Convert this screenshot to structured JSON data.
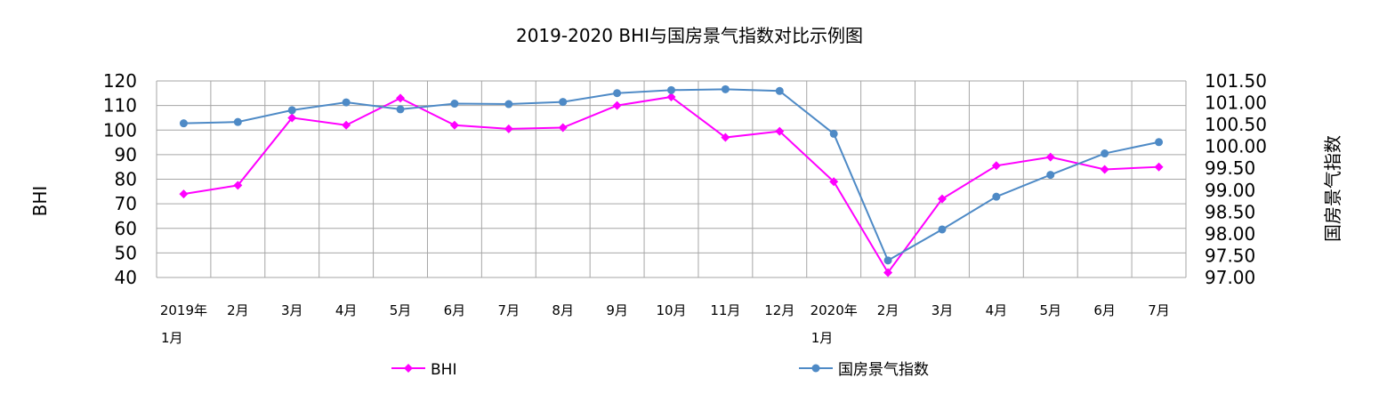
{
  "chart_data": {
    "type": "line",
    "title": "2019-2020 BHI与国房景气指数对比示例图",
    "categories": [
      [
        "2019年",
        "1月"
      ],
      [
        "2月"
      ],
      [
        "3月"
      ],
      [
        "4月"
      ],
      [
        "5月"
      ],
      [
        "6月"
      ],
      [
        "7月"
      ],
      [
        "8月"
      ],
      [
        "9月"
      ],
      [
        "10月"
      ],
      [
        "11月"
      ],
      [
        "12月"
      ],
      [
        "2020年",
        "1月"
      ],
      [
        "2月"
      ],
      [
        "3月"
      ],
      [
        "4月"
      ],
      [
        "5月"
      ],
      [
        "6月"
      ],
      [
        "7月"
      ]
    ],
    "ylabel_left": "BHI",
    "ylabel_right": "国房景气指数",
    "ylim_left": [
      40,
      120
    ],
    "yticks_left": [
      "40",
      "50",
      "60",
      "70",
      "80",
      "90",
      "100",
      "110",
      "120"
    ],
    "ylim_right": [
      97.0,
      101.5
    ],
    "yticks_right": [
      "97.00",
      "97.50",
      "98.00",
      "98.50",
      "99.00",
      "99.50",
      "100.00",
      "100.50",
      "101.00",
      "101.50"
    ],
    "grid": true,
    "legend_position": "bottom",
    "series": [
      {
        "name": "BHI",
        "axis": "left",
        "color": "#ff00ff",
        "marker": "diamond",
        "values": [
          74,
          77.5,
          105,
          102,
          113,
          102,
          100.5,
          101,
          110,
          113.5,
          97,
          99.5,
          79,
          42,
          72,
          85.5,
          89,
          84,
          85
        ]
      },
      {
        "name": "国房景气指数",
        "axis": "right",
        "color": "#4e8ac6",
        "marker": "circle",
        "values": [
          100.53,
          100.56,
          100.83,
          101.01,
          100.85,
          100.98,
          100.97,
          101.02,
          101.22,
          101.29,
          101.31,
          101.27,
          100.29,
          97.39,
          98.1,
          98.85,
          99.35,
          99.84,
          100.1
        ]
      }
    ]
  }
}
